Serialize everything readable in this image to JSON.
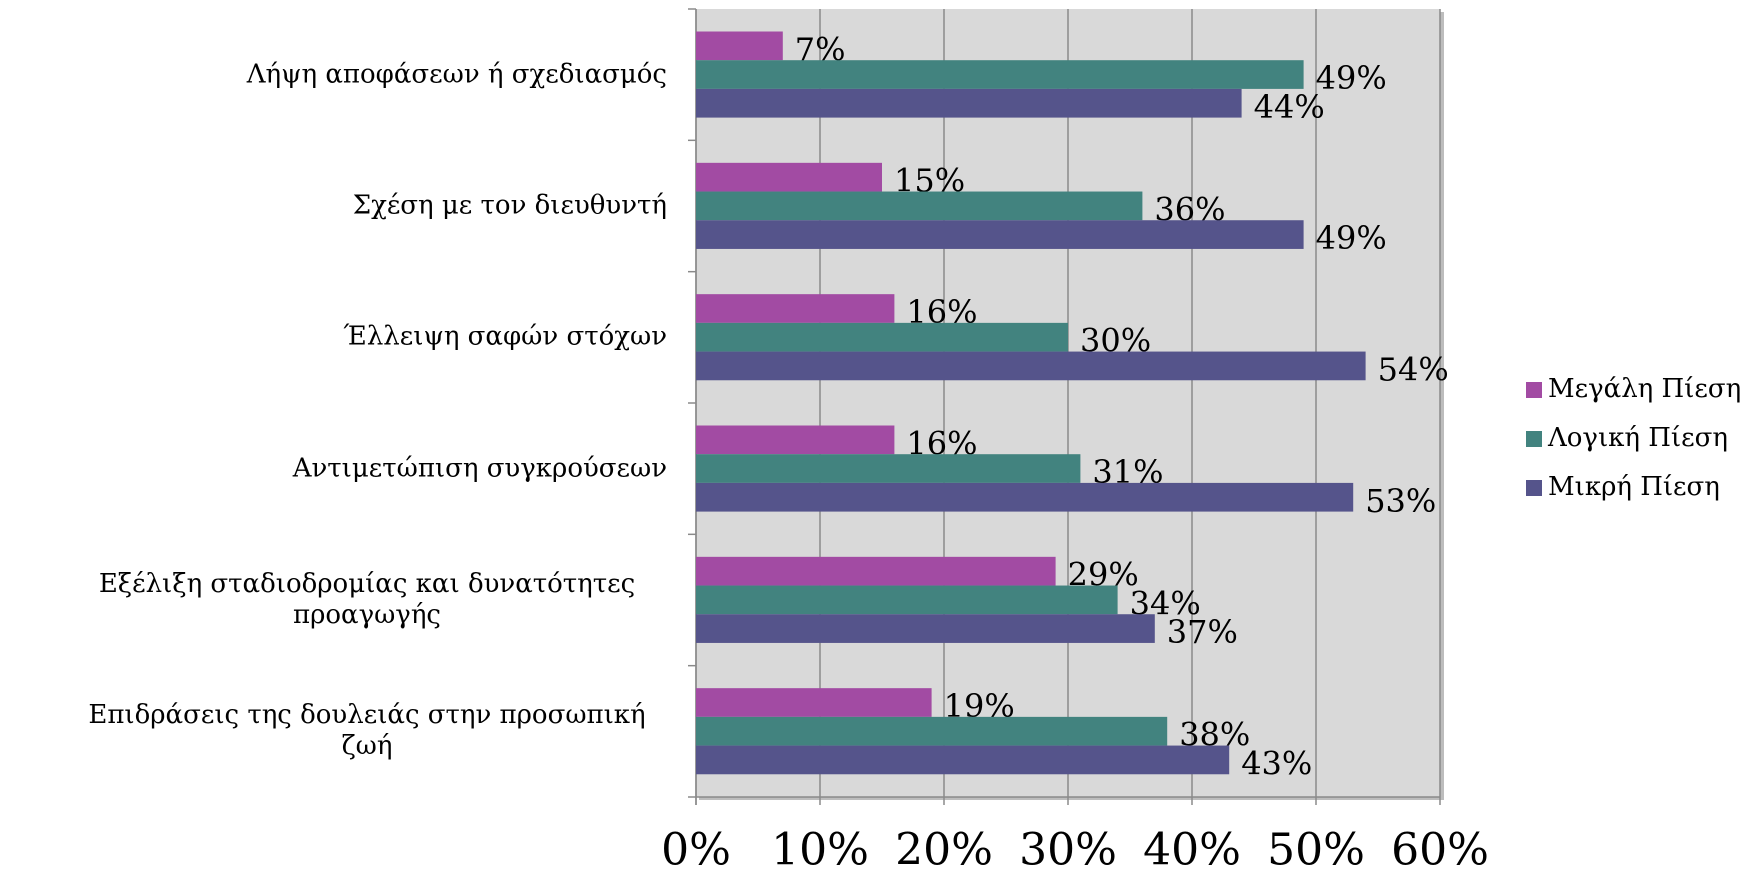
{
  "chart_data": {
    "type": "hbar",
    "categories": [
      "Λήψη αποφάσεων ή σχεδιασμός",
      "Σχέση με τον διευθυντή",
      "Έλλειψη σαφών στόχων",
      "Αντιμετώπιση συγκρούσεων",
      "Εξέλιξη σταδιοδρομίας και δυνατότητες προαγωγής",
      "Επιδράσεις της δουλειάς στην προσωπική ζωή"
    ],
    "series": [
      {
        "name": "Μεγάλη Πίεση",
        "color": "#a24ba3",
        "values": [
          7,
          15,
          16,
          16,
          29,
          19
        ],
        "value_labels": [
          "7%",
          "15%",
          "16%",
          "16%",
          "29%",
          "19%"
        ]
      },
      {
        "name": "Λογική Πίεση",
        "color": "#42837f",
        "values": [
          49,
          36,
          30,
          31,
          34,
          38
        ],
        "value_labels": [
          "49%",
          "36%",
          "30%",
          "31%",
          "34%",
          "38%"
        ]
      },
      {
        "name": "Μικρή Πίεση",
        "color": "#55548b",
        "values": [
          44,
          49,
          54,
          53,
          37,
          43
        ],
        "value_labels": [
          "44%",
          "49%",
          "54%",
          "53%",
          "37%",
          "43%"
        ]
      }
    ],
    "xlim": [
      0,
      60
    ],
    "xticks": [
      {
        "value": 0,
        "label": "0%"
      },
      {
        "value": 10,
        "label": "10%"
      },
      {
        "value": 20,
        "label": "20%"
      },
      {
        "value": 30,
        "label": "30%"
      },
      {
        "value": 40,
        "label": "40%"
      },
      {
        "value": 50,
        "label": "50%"
      },
      {
        "value": 60,
        "label": "60%"
      }
    ],
    "grid": true,
    "legend": "right"
  }
}
